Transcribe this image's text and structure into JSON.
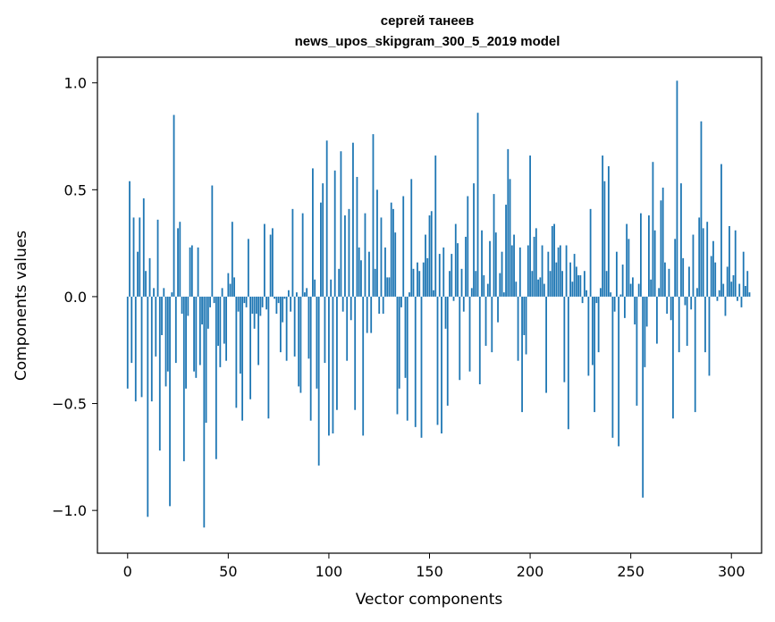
{
  "chart_data": {
    "type": "bar",
    "title_line1": "сергей танеев",
    "title_line2": "news_upos_skipgram_300_5_2019 model",
    "xlabel": "Vector components",
    "ylabel": "Components values",
    "xlim": [
      -15,
      315
    ],
    "ylim": [
      -1.2,
      1.12
    ],
    "xticks": [
      0,
      50,
      100,
      150,
      200,
      250,
      300
    ],
    "xtick_labels": [
      "0",
      "50",
      "100",
      "150",
      "200",
      "250",
      "300"
    ],
    "yticks": [
      -1.0,
      -0.5,
      0.0,
      0.5,
      1.0
    ],
    "ytick_labels": [
      "−1.0",
      "−0.5",
      "0.0",
      "0.5",
      "1.0"
    ],
    "bar_color": "#1f77b4",
    "values": [
      -0.43,
      0.54,
      -0.31,
      0.37,
      -0.49,
      0.21,
      0.37,
      -0.47,
      0.46,
      0.12,
      -1.03,
      0.18,
      -0.49,
      0.04,
      -0.28,
      0.36,
      -0.72,
      -0.18,
      0.04,
      -0.42,
      -0.35,
      -0.98,
      0.02,
      0.85,
      -0.31,
      0.32,
      0.35,
      -0.08,
      -0.77,
      -0.43,
      -0.09,
      0.23,
      0.24,
      -0.35,
      -0.38,
      0.23,
      -0.32,
      -0.13,
      -1.08,
      -0.59,
      -0.15,
      -0.05,
      0.52,
      -0.03,
      -0.76,
      -0.23,
      -0.33,
      0.04,
      -0.22,
      -0.3,
      0.11,
      0.06,
      0.35,
      0.09,
      -0.52,
      -0.07,
      -0.36,
      -0.58,
      -0.03,
      -0.05,
      0.27,
      -0.48,
      -0.08,
      -0.15,
      -0.08,
      -0.32,
      -0.09,
      -0.05,
      0.34,
      -0.06,
      -0.57,
      0.29,
      0.32,
      -0.01,
      -0.08,
      -0.03,
      -0.26,
      -0.12,
      -0.01,
      -0.3,
      0.03,
      -0.07,
      0.41,
      -0.28,
      0.02,
      -0.42,
      -0.45,
      0.39,
      0.02,
      0.04,
      -0.29,
      -0.58,
      0.6,
      0.08,
      -0.43,
      -0.79,
      0.44,
      0.53,
      -0.31,
      0.73,
      -0.65,
      0.08,
      -0.64,
      0.59,
      -0.53,
      0.13,
      0.68,
      -0.07,
      0.38,
      -0.3,
      0.41,
      -0.11,
      0.72,
      -0.53,
      0.56,
      0.23,
      0.17,
      -0.65,
      0.39,
      -0.17,
      0.21,
      -0.17,
      0.76,
      0.13,
      0.5,
      -0.08,
      0.37,
      -0.08,
      0.23,
      0.09,
      0.09,
      0.44,
      0.41,
      0.3,
      -0.55,
      -0.43,
      -0.05,
      0.47,
      -0.38,
      -0.58,
      0.02,
      0.55,
      0.13,
      -0.61,
      0.16,
      0.12,
      -0.66,
      0.16,
      0.29,
      0.18,
      0.38,
      0.4,
      0.03,
      0.66,
      -0.6,
      0.2,
      -0.64,
      0.23,
      -0.15,
      -0.51,
      0.12,
      0.2,
      -0.02,
      0.34,
      0.25,
      -0.39,
      0.13,
      -0.07,
      0.28,
      0.47,
      -0.35,
      0.04,
      0.53,
      0.12,
      0.86,
      -0.41,
      0.31,
      0.1,
      -0.23,
      0.06,
      0.26,
      -0.26,
      0.48,
      0.3,
      -0.12,
      0.11,
      0.21,
      0.02,
      0.43,
      0.69,
      0.55,
      0.24,
      0.29,
      0.07,
      -0.3,
      0.23,
      -0.54,
      -0.18,
      -0.27,
      0.24,
      0.66,
      0.12,
      0.28,
      0.32,
      0.08,
      0.09,
      0.24,
      0.06,
      -0.45,
      0.21,
      0.12,
      0.33,
      0.34,
      0.16,
      0.23,
      0.24,
      0.12,
      -0.4,
      0.24,
      -0.62,
      0.16,
      0.07,
      0.2,
      0.14,
      0.1,
      0.1,
      -0.03,
      0.12,
      0.03,
      -0.37,
      0.41,
      -0.32,
      -0.54,
      -0.03,
      -0.26,
      0.04,
      0.66,
      0.54,
      0.12,
      0.61,
      0.02,
      -0.66,
      -0.07,
      0.21,
      -0.7,
      0.01,
      0.15,
      -0.1,
      0.34,
      0.27,
      0.06,
      0.09,
      -0.13,
      -0.51,
      0.06,
      0.39,
      -0.94,
      -0.33,
      -0.14,
      0.38,
      0.08,
      0.63,
      0.31,
      -0.22,
      0.04,
      0.45,
      0.51,
      0.16,
      -0.08,
      0.13,
      -0.11,
      -0.57,
      0.27,
      1.01,
      -0.26,
      0.53,
      0.18,
      -0.04,
      -0.23,
      0.14,
      -0.06,
      0.29,
      -0.54,
      0.04,
      0.37,
      0.82,
      0.32,
      -0.26,
      0.35,
      -0.37,
      0.19,
      0.26,
      0.16,
      -0.02,
      0.03,
      0.62,
      0.06,
      -0.09,
      0.14,
      0.33,
      0.07,
      0.1,
      0.31,
      -0.02,
      0.06,
      -0.05,
      0.21,
      0.05,
      0.12,
      0.02
    ]
  }
}
